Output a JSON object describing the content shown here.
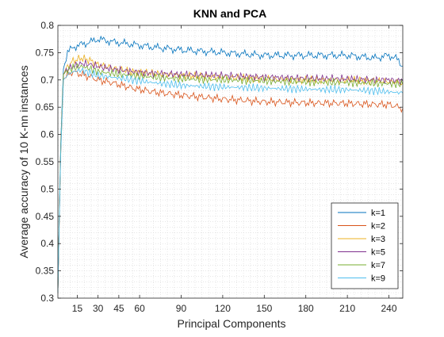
{
  "chart_data": {
    "type": "line",
    "title": "KNN and PCA",
    "xlabel": "Principal Components",
    "ylabel": "Average accuracy of 10 K-nn instances",
    "xlim": [
      1,
      250
    ],
    "ylim": [
      0.3,
      0.8
    ],
    "xticks": [
      15,
      30,
      45,
      60,
      90,
      120,
      150,
      180,
      210,
      240
    ],
    "yticks": [
      0.3,
      0.35,
      0.4,
      0.45,
      0.5,
      0.55,
      0.6,
      0.65,
      0.7,
      0.75,
      0.8
    ],
    "grid": "minor dotted",
    "legend_position": "bottom-right",
    "series": [
      {
        "name": "k=1",
        "color": "#0072BD",
        "x": [
          1,
          3,
          5,
          8,
          12,
          18,
          25,
          30,
          40,
          55,
          70,
          90,
          120,
          150,
          180,
          210,
          230,
          240,
          245,
          250
        ],
        "values": [
          0.31,
          0.58,
          0.72,
          0.75,
          0.76,
          0.765,
          0.77,
          0.775,
          0.77,
          0.765,
          0.76,
          0.755,
          0.75,
          0.745,
          0.745,
          0.745,
          0.74,
          0.745,
          0.74,
          0.725
        ]
      },
      {
        "name": "k=2",
        "color": "#D95319",
        "x": [
          1,
          3,
          5,
          8,
          12,
          18,
          25,
          30,
          40,
          55,
          70,
          90,
          120,
          150,
          180,
          210,
          230,
          240,
          250
        ],
        "values": [
          0.31,
          0.56,
          0.7,
          0.71,
          0.715,
          0.71,
          0.705,
          0.7,
          0.695,
          0.685,
          0.678,
          0.672,
          0.665,
          0.66,
          0.658,
          0.657,
          0.655,
          0.655,
          0.648
        ]
      },
      {
        "name": "k=3",
        "color": "#EDB120",
        "x": [
          1,
          3,
          5,
          8,
          12,
          18,
          25,
          30,
          40,
          55,
          70,
          90,
          120,
          150,
          180,
          210,
          230,
          240,
          250
        ],
        "values": [
          0.31,
          0.57,
          0.71,
          0.725,
          0.735,
          0.74,
          0.735,
          0.728,
          0.722,
          0.715,
          0.712,
          0.708,
          0.705,
          0.702,
          0.7,
          0.7,
          0.698,
          0.697,
          0.695
        ]
      },
      {
        "name": "k=5",
        "color": "#7E2F8E",
        "x": [
          1,
          3,
          5,
          8,
          12,
          18,
          25,
          30,
          40,
          55,
          70,
          90,
          120,
          150,
          180,
          210,
          230,
          240,
          250
        ],
        "values": [
          0.31,
          0.57,
          0.71,
          0.72,
          0.725,
          0.73,
          0.728,
          0.725,
          0.72,
          0.715,
          0.712,
          0.71,
          0.708,
          0.705,
          0.703,
          0.702,
          0.7,
          0.7,
          0.698
        ]
      },
      {
        "name": "k=7",
        "color": "#77AC30",
        "x": [
          1,
          3,
          5,
          8,
          12,
          18,
          25,
          30,
          40,
          55,
          70,
          90,
          120,
          150,
          180,
          210,
          230,
          240,
          250
        ],
        "values": [
          0.31,
          0.57,
          0.71,
          0.718,
          0.722,
          0.725,
          0.72,
          0.715,
          0.712,
          0.708,
          0.705,
          0.702,
          0.7,
          0.698,
          0.696,
          0.695,
          0.694,
          0.693,
          0.692
        ]
      },
      {
        "name": "k=9",
        "color": "#4DBEEE",
        "x": [
          1,
          3,
          5,
          8,
          12,
          18,
          25,
          30,
          40,
          55,
          70,
          90,
          120,
          150,
          180,
          210,
          230,
          240,
          250
        ],
        "values": [
          0.31,
          0.56,
          0.7,
          0.71,
          0.715,
          0.718,
          0.712,
          0.708,
          0.705,
          0.7,
          0.695,
          0.69,
          0.687,
          0.685,
          0.683,
          0.682,
          0.68,
          0.678,
          0.676
        ]
      }
    ]
  }
}
